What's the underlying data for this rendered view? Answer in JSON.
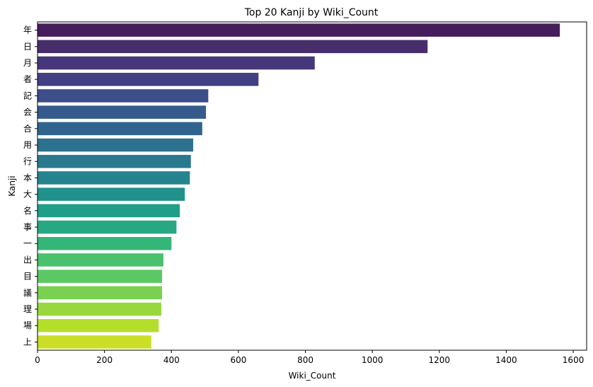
{
  "chart_data": {
    "type": "bar",
    "orientation": "horizontal",
    "title": "Top 20 Kanji by Wiki_Count",
    "xlabel": "Wiki_Count",
    "ylabel": "Kanji",
    "xlim": [
      0,
      1640
    ],
    "xticks": [
      0,
      200,
      400,
      600,
      800,
      1000,
      1200,
      1400,
      1600
    ],
    "grid": false,
    "colormap": "viridis",
    "categories": [
      "年",
      "日",
      "月",
      "者",
      "記",
      "会",
      "合",
      "用",
      "行",
      "本",
      "大",
      "名",
      "事",
      "一",
      "出",
      "目",
      "議",
      "理",
      "場",
      "上"
    ],
    "values": [
      1560,
      1165,
      828,
      660,
      510,
      503,
      492,
      465,
      458,
      455,
      440,
      425,
      415,
      400,
      376,
      372,
      372,
      370,
      362,
      340
    ],
    "colors": [
      "#440154",
      "#481a6c",
      "#472f7d",
      "#414487",
      "#39568c",
      "#31688e",
      "#2a788e",
      "#23888e",
      "#1f988b",
      "#22a884",
      "#35b779",
      "#54c568",
      "#7ad151",
      "#a5db36",
      "#d2e21b",
      "#ea0",
      "#fde725",
      "#fde725",
      "#fde725",
      "#fde725"
    ]
  }
}
